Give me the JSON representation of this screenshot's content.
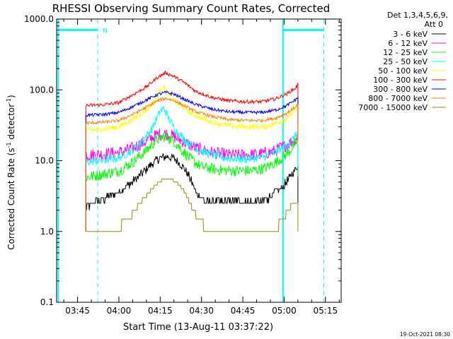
{
  "chart_data": {
    "type": "line",
    "title": "RHESSI Observing Summary Count Rates, Corrected",
    "xlabel": "Start Time (13-Aug-11 03:37:22)",
    "ylabel_main": "Corrected Count Rate (s",
    "ylabel_sup1": "-1",
    "ylabel_mid": " detector",
    "ylabel_sup2": "-1",
    "ylabel_end": ")",
    "yscale": "log",
    "ylim": [
      0.1,
      1000
    ],
    "xlim_minutes": [
      217.4,
      320.7
    ],
    "y_ticks": [
      {
        "value": 0.1,
        "label": "0.1"
      },
      {
        "value": 1,
        "label": "1.0"
      },
      {
        "value": 10,
        "label": "10.0"
      },
      {
        "value": 100,
        "label": "100.0"
      },
      {
        "value": 1000,
        "label": "1000.0"
      }
    ],
    "x_ticks": [
      {
        "minutes": 225,
        "label": "03:45"
      },
      {
        "minutes": 240,
        "label": "04:00"
      },
      {
        "minutes": 255,
        "label": "04:15"
      },
      {
        "minutes": 270,
        "label": "04:30"
      },
      {
        "minutes": 285,
        "label": "04:45"
      },
      {
        "minutes": 300,
        "label": "05:00"
      },
      {
        "minutes": 315,
        "label": "05:15"
      }
    ],
    "legend_header": [
      "Det 1,3,4,5,6,9,",
      "Att 0"
    ],
    "legend_position": "top-right",
    "series": [
      {
        "name": "3 - 6 keV",
        "color": "#000000",
        "points": [
          [
            228,
            2.2
          ],
          [
            235,
            3.0
          ],
          [
            240,
            3.6
          ],
          [
            245,
            5.0
          ],
          [
            250,
            7.5
          ],
          [
            254,
            10.5
          ],
          [
            257,
            11.5
          ],
          [
            260,
            10.8
          ],
          [
            263,
            8.5
          ],
          [
            266,
            5.5
          ],
          [
            268,
            3.6
          ],
          [
            272,
            2.6
          ],
          [
            280,
            2.6
          ],
          [
            286,
            2.6
          ],
          [
            292,
            2.6
          ],
          [
            296,
            3.3
          ],
          [
            300,
            4.5
          ],
          [
            303,
            6.5
          ],
          [
            305,
            8.5
          ]
        ]
      },
      {
        "name": "6 - 12 keV",
        "color": "#ff00ff",
        "points": [
          [
            228,
            12
          ],
          [
            235,
            12.5
          ],
          [
            240,
            13
          ],
          [
            245,
            15
          ],
          [
            250,
            19
          ],
          [
            254,
            23.5
          ],
          [
            257,
            24
          ],
          [
            260,
            22
          ],
          [
            264,
            18
          ],
          [
            268,
            15
          ],
          [
            274,
            13
          ],
          [
            280,
            12
          ],
          [
            286,
            12
          ],
          [
            292,
            12.5
          ],
          [
            296,
            13.5
          ],
          [
            300,
            16
          ],
          [
            304,
            20
          ],
          [
            305,
            23
          ]
        ]
      },
      {
        "name": "12 - 25 keV",
        "color": "#00ff00",
        "points": [
          [
            228,
            5.8
          ],
          [
            235,
            6.5
          ],
          [
            240,
            7.2
          ],
          [
            245,
            9.5
          ],
          [
            250,
            14
          ],
          [
            254,
            20
          ],
          [
            257,
            22
          ],
          [
            260,
            19
          ],
          [
            263,
            14
          ],
          [
            266,
            10.5
          ],
          [
            270,
            8.2
          ],
          [
            276,
            7.4
          ],
          [
            282,
            7.2
          ],
          [
            288,
            7.2
          ],
          [
            293,
            7.8
          ],
          [
            297,
            9.5
          ],
          [
            301,
            12.5
          ],
          [
            304,
            17
          ],
          [
            305,
            20
          ]
        ]
      },
      {
        "name": "25 - 50 keV",
        "color": "#00ffff",
        "points": [
          [
            228,
            9.5
          ],
          [
            235,
            10.2
          ],
          [
            240,
            11
          ],
          [
            245,
            14
          ],
          [
            249,
            20
          ],
          [
            252,
            28
          ],
          [
            255,
            50
          ],
          [
            256.5,
            55
          ],
          [
            258,
            40
          ],
          [
            261,
            26
          ],
          [
            265,
            18
          ],
          [
            270,
            13.5
          ],
          [
            278,
            11
          ],
          [
            285,
            10.5
          ],
          [
            291,
            11
          ],
          [
            296,
            12.5
          ],
          [
            300,
            15.5
          ],
          [
            303,
            20
          ],
          [
            305,
            25
          ]
        ]
      },
      {
        "name": "50 - 100 keV",
        "color": "#ffff00",
        "points": [
          [
            228,
            27
          ],
          [
            235,
            28
          ],
          [
            240,
            30
          ],
          [
            245,
            38
          ],
          [
            250,
            52
          ],
          [
            253,
            70
          ],
          [
            256,
            115
          ],
          [
            258,
            90
          ],
          [
            262,
            62
          ],
          [
            267,
            45
          ],
          [
            273,
            36
          ],
          [
            280,
            31
          ],
          [
            287,
            30
          ],
          [
            293,
            30
          ],
          [
            297,
            34
          ],
          [
            301,
            40
          ],
          [
            304,
            52
          ],
          [
            305,
            58
          ]
        ]
      },
      {
        "name": "100 - 300 keV",
        "color": "#ff0000",
        "points": [
          [
            228,
            60
          ],
          [
            235,
            62
          ],
          [
            240,
            66
          ],
          [
            245,
            85
          ],
          [
            250,
            110
          ],
          [
            254,
            150
          ],
          [
            257,
            175
          ],
          [
            260,
            155
          ],
          [
            264,
            125
          ],
          [
            268,
            95
          ],
          [
            274,
            78
          ],
          [
            280,
            70
          ],
          [
            286,
            68
          ],
          [
            292,
            68
          ],
          [
            297,
            75
          ],
          [
            301,
            88
          ],
          [
            304,
            105
          ],
          [
            305,
            118
          ]
        ]
      },
      {
        "name": "300 - 800 keV",
        "color": "#0000ff",
        "points": [
          [
            228,
            44
          ],
          [
            235,
            45
          ],
          [
            240,
            48
          ],
          [
            245,
            58
          ],
          [
            250,
            72
          ],
          [
            254,
            86
          ],
          [
            257,
            92
          ],
          [
            260,
            87
          ],
          [
            264,
            73
          ],
          [
            268,
            62
          ],
          [
            274,
            53
          ],
          [
            280,
            49
          ],
          [
            286,
            48
          ],
          [
            292,
            48
          ],
          [
            297,
            52
          ],
          [
            301,
            60
          ],
          [
            304,
            72
          ],
          [
            305,
            78
          ]
        ]
      },
      {
        "name": "800 - 7000 keV",
        "color": "#ff8000",
        "points": [
          [
            228,
            34
          ],
          [
            235,
            35
          ],
          [
            240,
            37
          ],
          [
            245,
            45
          ],
          [
            250,
            57
          ],
          [
            254,
            70
          ],
          [
            257,
            76
          ],
          [
            260,
            71
          ],
          [
            264,
            59
          ],
          [
            268,
            49
          ],
          [
            274,
            42
          ],
          [
            280,
            38
          ],
          [
            286,
            37
          ],
          [
            292,
            37
          ],
          [
            297,
            40
          ],
          [
            301,
            47
          ],
          [
            304,
            57
          ],
          [
            305,
            62
          ]
        ]
      },
      {
        "name": "7000 - 15000 keV",
        "color": "#998800",
        "points": [
          [
            228,
            1.0
          ],
          [
            236,
            1.0
          ],
          [
            240,
            1.15
          ],
          [
            244,
            1.6
          ],
          [
            248,
            2.6
          ],
          [
            252,
            4.0
          ],
          [
            255,
            5.2
          ],
          [
            258,
            5.6
          ],
          [
            261,
            5.0
          ],
          [
            264,
            3.6
          ],
          [
            267,
            2.0
          ],
          [
            270,
            1.3
          ],
          [
            274,
            1.05
          ],
          [
            280,
            1.0
          ],
          [
            290,
            1.0
          ],
          [
            296,
            1.05
          ],
          [
            299,
            1.35
          ],
          [
            302,
            2.2
          ],
          [
            305,
            2.7
          ]
        ]
      }
    ],
    "annotations": {
      "night_label": "N",
      "date_stamp": "19-Oct-2021 08:30"
    }
  }
}
